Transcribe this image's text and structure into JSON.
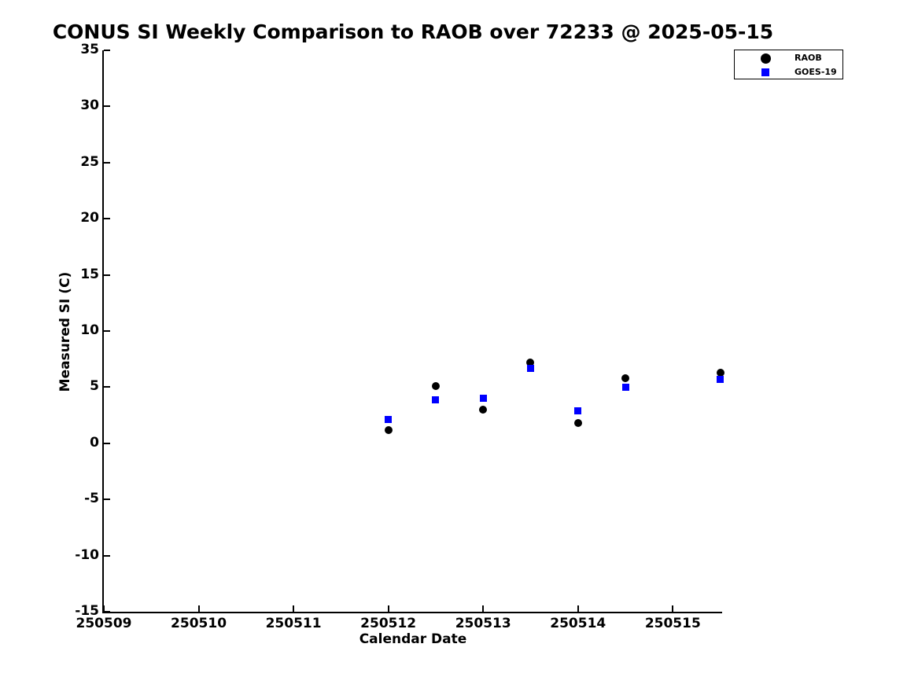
{
  "title": "CONUS SI Weekly Comparison to RAOB over 72233 @ 2025-05-15",
  "colors": {
    "raob": "#000000",
    "goes19": "#0000ff",
    "axis": "#000000",
    "background": "#ffffff"
  },
  "chart_data": {
    "type": "scatter",
    "title": "CONUS SI Weekly Comparison to RAOB over 72233 @ 2025-05-15",
    "xlabel": "Calendar Date",
    "ylabel": "Measured SI (C)",
    "xlim": [
      250509,
      250515.52
    ],
    "ylim": [
      -15,
      35
    ],
    "x_ticks": [
      250509,
      250510,
      250511,
      250512,
      250513,
      250514,
      250515
    ],
    "y_ticks": [
      35,
      30,
      25,
      20,
      15,
      10,
      5,
      0,
      -5,
      -10,
      -15
    ],
    "grid": false,
    "legend_position": "top-right",
    "series": [
      {
        "name": "RAOB",
        "marker": "circle",
        "color": "#000000",
        "x": [
          250512,
          250512.5,
          250513,
          250513.5,
          250514,
          250514.5,
          250515.5
        ],
        "y": [
          1.2,
          5.1,
          3.0,
          7.2,
          1.8,
          5.8,
          6.3
        ]
      },
      {
        "name": "GOES-19",
        "marker": "square",
        "color": "#0000ff",
        "x": [
          250512,
          250512.5,
          250513,
          250513.5,
          250514,
          250514.5,
          250515.5
        ],
        "y": [
          2.1,
          3.9,
          4.0,
          6.7,
          2.9,
          5.0,
          5.7
        ]
      }
    ]
  }
}
